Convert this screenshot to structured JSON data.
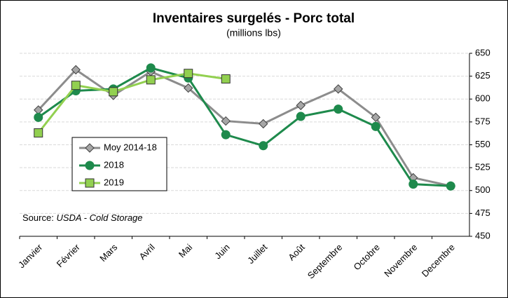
{
  "chart_data": {
    "type": "line",
    "title": "Inventaires surgelés - Porc total",
    "subtitle": "(millions lbs)",
    "source_label": "Source:",
    "source": "USDA - Cold Storage",
    "categories": [
      "Janvier",
      "Février",
      "Mars",
      "Avril",
      "Mai",
      "Juin",
      "Juillet",
      "Août",
      "Septembre",
      "Octobre",
      "Novembre",
      "Decembre"
    ],
    "series": [
      {
        "name": "Moy 2014-18",
        "color": "#8c8c8c",
        "marker": "diamond",
        "values": [
          588,
          632,
          604,
          630,
          612,
          576,
          573,
          593,
          611,
          580,
          514,
          505
        ]
      },
      {
        "name": "2018",
        "color": "#1e8a4c",
        "marker": "circle",
        "values": [
          580,
          609,
          611,
          634,
          623,
          561,
          549,
          581,
          589,
          570,
          507,
          505
        ]
      },
      {
        "name": "2019",
        "color": "#92d050",
        "marker": "square",
        "values": [
          563,
          615,
          608,
          621,
          628,
          622,
          null,
          null,
          null,
          null,
          null,
          null
        ]
      }
    ],
    "ylim": [
      450,
      650
    ],
    "yticks": [
      450,
      475,
      500,
      525,
      550,
      575,
      600,
      625,
      650
    ],
    "y_axis_side": "right",
    "grid": true
  }
}
